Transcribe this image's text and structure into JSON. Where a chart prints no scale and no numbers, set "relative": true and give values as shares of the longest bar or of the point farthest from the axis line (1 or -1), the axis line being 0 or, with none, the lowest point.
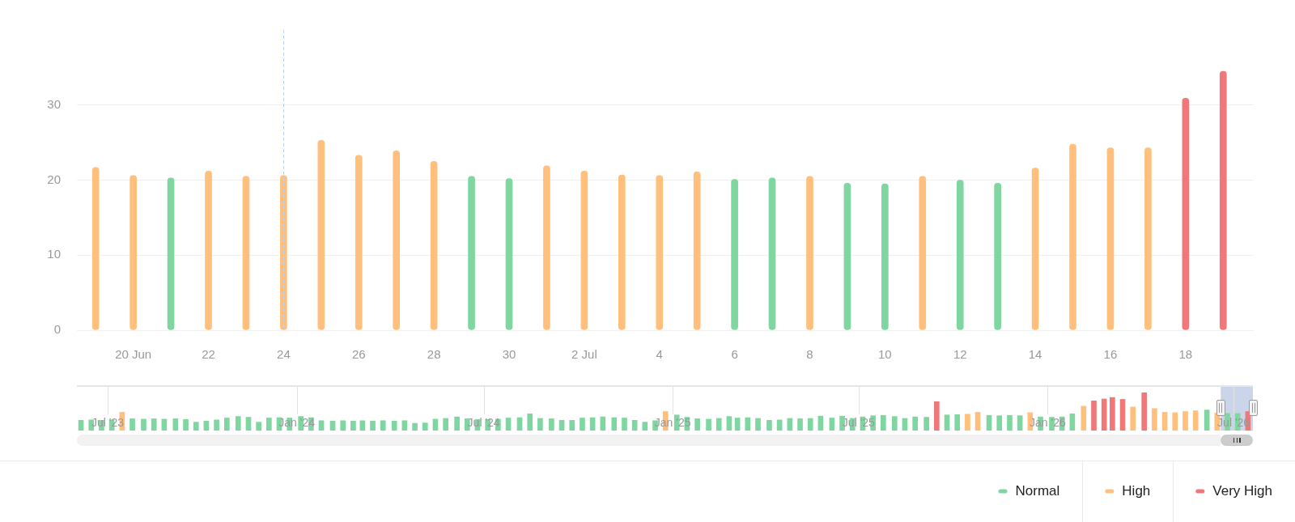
{
  "chart_data": [
    {
      "type": "bar",
      "x": [
        "2026-06-19",
        "2026-06-20",
        "2026-06-21",
        "2026-06-22",
        "2026-06-23",
        "2026-06-24",
        "2026-06-25",
        "2026-06-26",
        "2026-06-27",
        "2026-06-28",
        "2026-06-29",
        "2026-06-30",
        "2026-07-01",
        "2026-07-02",
        "2026-07-03",
        "2026-07-04",
        "2026-07-05",
        "2026-07-06",
        "2026-07-07",
        "2026-07-08",
        "2026-07-09",
        "2026-07-10",
        "2026-07-11",
        "2026-07-12",
        "2026-07-13",
        "2026-07-14",
        "2026-07-15",
        "2026-07-16",
        "2026-07-17",
        "2026-07-18",
        "2026-07-19"
      ],
      "series": [
        {
          "name": "Normal",
          "color": "#80d6a0",
          "values": [
            null,
            null,
            20.3,
            null,
            null,
            null,
            null,
            null,
            null,
            null,
            20.5,
            20.2,
            null,
            null,
            null,
            null,
            null,
            20.1,
            20.3,
            null,
            19.6,
            19.5,
            null,
            20.0,
            19.6,
            null,
            null,
            null,
            null,
            null,
            null
          ]
        },
        {
          "name": "High",
          "color": "#ffc07e",
          "values": [
            21.7,
            20.6,
            null,
            21.2,
            20.5,
            20.6,
            25.3,
            23.3,
            23.9,
            22.5,
            null,
            null,
            21.9,
            21.2,
            20.7,
            20.6,
            21.1,
            null,
            null,
            20.5,
            null,
            null,
            20.5,
            null,
            null,
            21.6,
            24.8,
            24.3,
            24.3,
            null,
            null
          ]
        },
        {
          "name": "Very High",
          "color": "#f07878",
          "values": [
            null,
            null,
            null,
            null,
            null,
            null,
            null,
            null,
            null,
            null,
            null,
            null,
            null,
            null,
            null,
            null,
            null,
            null,
            null,
            null,
            null,
            null,
            null,
            null,
            null,
            null,
            null,
            null,
            null,
            30.9,
            34.5
          ]
        }
      ],
      "xlim": [
        "2026-06-18T12:00",
        "2026-07-19T19:30"
      ],
      "xticks": [
        {
          "value": "2026-06-20",
          "label": "20 Jun"
        },
        {
          "value": "2026-06-22",
          "label": "22"
        },
        {
          "value": "2026-06-24",
          "label": "24"
        },
        {
          "value": "2026-06-26",
          "label": "26"
        },
        {
          "value": "2026-06-28",
          "label": "28"
        },
        {
          "value": "2026-06-30",
          "label": "30"
        },
        {
          "value": "2026-07-02",
          "label": "2 Jul"
        },
        {
          "value": "2026-07-04",
          "label": "4"
        },
        {
          "value": "2026-07-06",
          "label": "6"
        },
        {
          "value": "2026-07-08",
          "label": "8"
        },
        {
          "value": "2026-07-10",
          "label": "10"
        },
        {
          "value": "2026-07-12",
          "label": "12"
        },
        {
          "value": "2026-07-14",
          "label": "14"
        },
        {
          "value": "2026-07-16",
          "label": "16"
        },
        {
          "value": "2026-07-18",
          "label": "18"
        }
      ],
      "ylim": [
        0,
        40
      ],
      "yticks": [
        0,
        10,
        20,
        30
      ],
      "grid": "y",
      "legend": "bottom right",
      "ref_lines": [
        {
          "axis": "x",
          "value": "2026-06-24",
          "color": "#b5d3f5",
          "line_style": "dashed"
        }
      ]
    },
    {
      "type": "bar",
      "relative": true,
      "x": [
        "2023-06-05",
        "2023-06-15",
        "2023-06-25",
        "2023-07-05",
        "2023-07-15",
        "2023-07-25",
        "2023-08-05",
        "2023-08-15",
        "2023-08-25",
        "2023-09-05",
        "2023-09-15",
        "2023-09-25",
        "2023-10-05",
        "2023-10-15",
        "2023-10-25",
        "2023-11-05",
        "2023-11-15",
        "2023-11-25",
        "2023-12-05",
        "2023-12-15",
        "2023-12-25",
        "2024-01-05",
        "2024-01-15",
        "2024-01-25",
        "2024-02-05",
        "2024-02-15",
        "2024-02-25",
        "2024-03-05",
        "2024-03-15",
        "2024-03-25",
        "2024-04-05",
        "2024-04-15",
        "2024-04-25",
        "2024-05-05",
        "2024-05-15",
        "2024-05-25",
        "2024-06-05",
        "2024-06-15",
        "2024-06-25",
        "2024-07-05",
        "2024-07-15",
        "2024-07-25",
        "2024-08-05",
        "2024-08-15",
        "2024-08-25",
        "2024-09-05",
        "2024-09-15",
        "2024-09-25",
        "2024-10-05",
        "2024-10-15",
        "2024-10-25",
        "2024-11-05",
        "2024-11-15",
        "2024-11-25",
        "2024-12-05",
        "2024-12-15",
        "2024-12-25",
        "2025-01-05",
        "2025-01-15",
        "2025-01-25",
        "2025-02-05",
        "2025-02-15",
        "2025-02-25",
        "2025-03-05",
        "2025-03-15",
        "2025-03-25",
        "2025-04-05",
        "2025-04-15",
        "2025-04-25",
        "2025-05-05",
        "2025-05-15",
        "2025-05-25",
        "2025-06-05",
        "2025-06-15",
        "2025-06-25",
        "2025-07-05",
        "2025-07-15",
        "2025-07-25",
        "2025-08-05",
        "2025-08-15",
        "2025-08-25",
        "2025-09-05",
        "2025-09-15",
        "2025-09-25",
        "2025-10-05",
        "2025-10-15",
        "2025-10-25",
        "2025-11-05",
        "2025-11-15",
        "2025-11-25",
        "2025-12-05",
        "2025-12-15",
        "2025-12-25",
        "2026-01-05",
        "2026-01-15",
        "2026-01-25",
        "2026-02-05",
        "2026-02-15",
        "2026-02-25",
        "2026-03-05",
        "2026-03-15",
        "2026-03-25",
        "2026-04-05",
        "2026-04-15",
        "2026-04-25",
        "2026-05-05",
        "2026-05-15",
        "2026-05-25",
        "2026-06-05",
        "2026-06-15",
        "2026-06-25",
        "2026-07-05",
        "2026-07-15"
      ],
      "values": [
        0.27,
        0.28,
        0.27,
        0.28,
        0.48,
        0.31,
        0.3,
        0.31,
        0.3,
        0.31,
        0.29,
        0.22,
        0.25,
        0.28,
        0.33,
        0.37,
        0.35,
        0.22,
        0.33,
        0.34,
        0.33,
        0.37,
        0.34,
        0.26,
        0.25,
        0.26,
        0.25,
        0.26,
        0.25,
        0.26,
        0.25,
        0.26,
        0.19,
        0.2,
        0.3,
        0.32,
        0.36,
        0.31,
        0.29,
        0.29,
        0.3,
        0.33,
        0.34,
        0.44,
        0.32,
        0.31,
        0.27,
        0.27,
        0.33,
        0.34,
        0.36,
        0.34,
        0.33,
        0.27,
        0.22,
        0.26,
        0.5,
        0.41,
        0.35,
        0.31,
        0.3,
        0.32,
        0.37,
        0.33,
        0.34,
        0.32,
        0.27,
        0.28,
        0.32,
        0.31,
        0.32,
        0.38,
        0.33,
        0.38,
        0.32,
        0.36,
        0.39,
        0.4,
        0.37,
        0.32,
        0.36,
        0.35,
        0.76,
        0.41,
        0.42,
        0.43,
        0.48,
        0.4,
        0.39,
        0.4,
        0.39,
        0.47,
        0.36,
        0.35,
        0.36,
        0.44,
        0.64,
        0.78,
        0.83,
        0.87,
        0.82,
        0.62,
        1,
        0.58,
        0.48,
        0.47,
        0.5,
        0.52,
        0.54,
        0.46,
        0.45,
        0.45,
        0.5
      ],
      "colors": [
        "#80d6a0",
        "#80d6a0",
        "#80d6a0",
        "#80d6a0",
        "#ffc07e",
        "#80d6a0",
        "#80d6a0",
        "#80d6a0",
        "#80d6a0",
        "#80d6a0",
        "#80d6a0",
        "#80d6a0",
        "#80d6a0",
        "#80d6a0",
        "#80d6a0",
        "#80d6a0",
        "#80d6a0",
        "#80d6a0",
        "#80d6a0",
        "#80d6a0",
        "#80d6a0",
        "#80d6a0",
        "#80d6a0",
        "#80d6a0",
        "#80d6a0",
        "#80d6a0",
        "#80d6a0",
        "#80d6a0",
        "#80d6a0",
        "#80d6a0",
        "#80d6a0",
        "#80d6a0",
        "#80d6a0",
        "#80d6a0",
        "#80d6a0",
        "#80d6a0",
        "#80d6a0",
        "#80d6a0",
        "#80d6a0",
        "#80d6a0",
        "#80d6a0",
        "#80d6a0",
        "#80d6a0",
        "#80d6a0",
        "#80d6a0",
        "#80d6a0",
        "#80d6a0",
        "#80d6a0",
        "#80d6a0",
        "#80d6a0",
        "#80d6a0",
        "#80d6a0",
        "#80d6a0",
        "#80d6a0",
        "#80d6a0",
        "#80d6a0",
        "#ffc07e",
        "#80d6a0",
        "#80d6a0",
        "#80d6a0",
        "#80d6a0",
        "#80d6a0",
        "#80d6a0",
        "#80d6a0",
        "#80d6a0",
        "#80d6a0",
        "#80d6a0",
        "#80d6a0",
        "#80d6a0",
        "#80d6a0",
        "#80d6a0",
        "#80d6a0",
        "#80d6a0",
        "#80d6a0",
        "#80d6a0",
        "#80d6a0",
        "#80d6a0",
        "#80d6a0",
        "#80d6a0",
        "#80d6a0",
        "#80d6a0",
        "#80d6a0",
        "#f07878",
        "#80d6a0",
        "#80d6a0",
        "#ffc07e",
        "#ffc07e",
        "#80d6a0",
        "#80d6a0",
        "#80d6a0",
        "#80d6a0",
        "#ffc07e",
        "#80d6a0",
        "#80d6a0",
        "#80d6a0",
        "#80d6a0",
        "#ffc07e",
        "#f07878",
        "#f07878",
        "#f07878",
        "#f07878",
        "#ffc07e",
        "#f07878",
        "#ffc07e",
        "#ffc07e",
        "#ffc07e",
        "#ffc07e",
        "#ffc07e",
        "#80d6a0",
        "#ffc07e",
        "#80d6a0",
        "#80d6a0",
        "#f07878"
      ],
      "xlim": [
        "2023-06-01",
        "2026-07-19T19:30"
      ],
      "xticks": [
        {
          "value": "2023-07-01",
          "label": "Jul '23"
        },
        {
          "value": "2024-01-01",
          "label": "Jan '24"
        },
        {
          "value": "2024-07-01",
          "label": "Jul '24"
        },
        {
          "value": "2025-01-01",
          "label": "Jan '25"
        },
        {
          "value": "2025-07-01",
          "label": "Jul '25"
        },
        {
          "value": "2026-01-01",
          "label": "Jan '26"
        },
        {
          "value": "2026-07-01",
          "label": "Jul '26"
        }
      ],
      "grid": "x",
      "bands": [
        {
          "axis": "x",
          "from": "2026-06-18T12:00",
          "to": "2026-07-19T19:30",
          "color": "#cbd5ea"
        }
      ]
    }
  ]
}
